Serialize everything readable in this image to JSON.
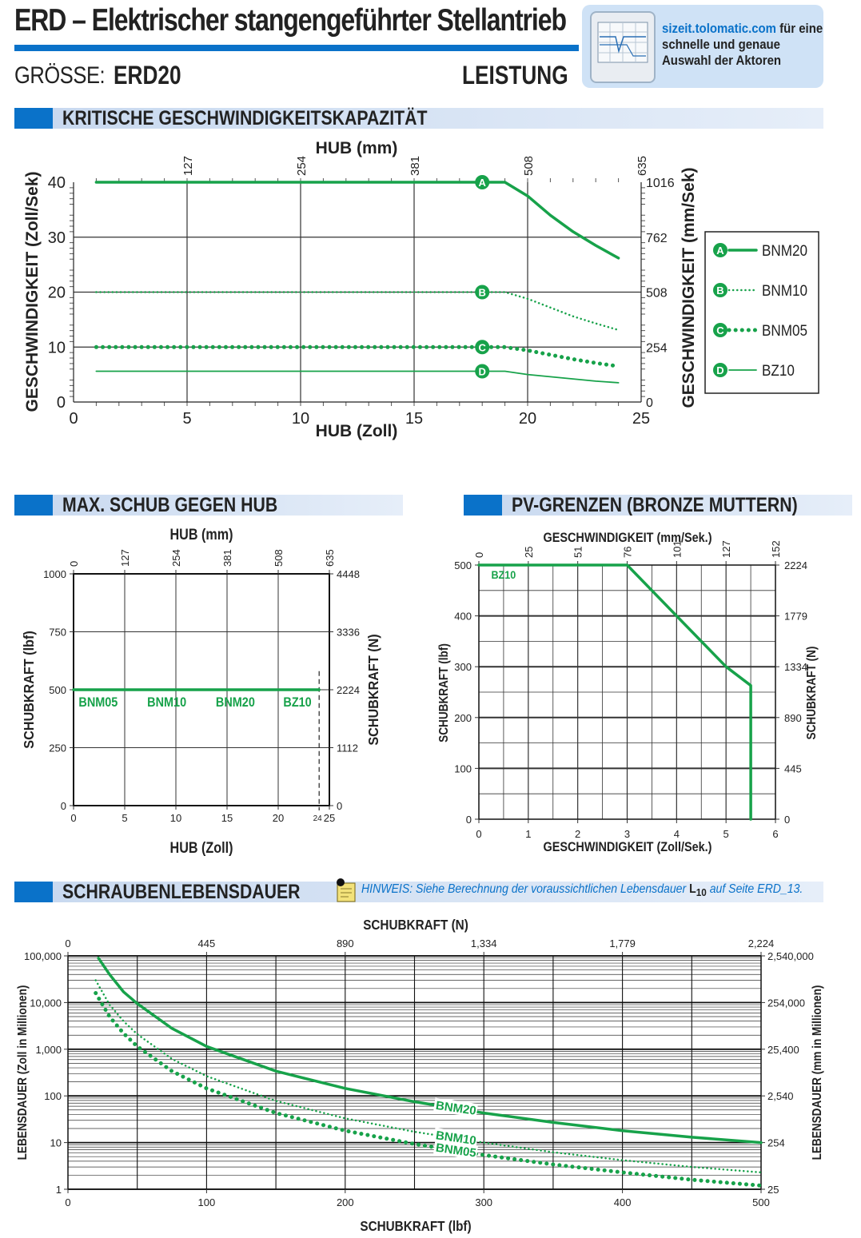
{
  "header": {
    "title": "ERD – Elektrischer stangengeführter Stellantrieb",
    "size_label": "GRÖSSE:",
    "size_value": "ERD20",
    "section": "LEISTUNG",
    "promo_url": "sizeit.tolomatic.com",
    "promo_rest": " für eine schnelle und genaue Auswahl der Aktoren"
  },
  "sections": {
    "critical": "KRITISCHE GESCHWINDIGKEITSKAPAZITÄT",
    "thrust": "MAX. SCHUB GEGEN HUB",
    "pv": "PV-GRENZEN (BRONZE MUTTERN)",
    "life": "SCHRAUBENLEBENSDAUER"
  },
  "note": {
    "text": "HINWEIS: Siehe Berechnung der voraussichtlichen Lebensdauer ",
    "bold": "L",
    "sub": "10",
    "tail": " auf Seite ERD_13."
  },
  "colors": {
    "accent": "#0a72c9",
    "series": "#17a24a"
  },
  "chart_data": [
    {
      "id": "critical_speed",
      "type": "line",
      "xlabel": "HUB (Zoll)",
      "x2label": "HUB (mm)",
      "ylabel": "GESCHWINDIGKEIT (Zoll/Sek)",
      "y2label": "GESCHWINDIGKEIT (mm/Sek)",
      "xlim": [
        0,
        25
      ],
      "ylim": [
        0,
        40
      ],
      "xticks": [
        0,
        5,
        10,
        15,
        20,
        25
      ],
      "yticks": [
        0,
        10,
        20,
        30,
        40
      ],
      "x2ticks": [
        {
          "v": 5,
          "l": "127"
        },
        {
          "v": 10,
          "l": "254"
        },
        {
          "v": 15,
          "l": "381"
        },
        {
          "v": 20,
          "l": "508"
        },
        {
          "v": 25,
          "l": "635"
        }
      ],
      "y2ticks": [
        {
          "v": 0,
          "l": "0"
        },
        {
          "v": 10,
          "l": "254"
        },
        {
          "v": 20,
          "l": "508"
        },
        {
          "v": 30,
          "l": "762"
        },
        {
          "v": 40,
          "l": "1016"
        }
      ],
      "series": [
        {
          "name": "BNM20",
          "marker": "A",
          "style": "solid",
          "x": [
            1,
            19,
            20,
            21,
            22,
            23,
            24
          ],
          "y": [
            40,
            40,
            37.5,
            34,
            31,
            28.5,
            26.2
          ],
          "label_at": [
            18,
            40
          ]
        },
        {
          "name": "BNM10",
          "marker": "B",
          "style": "dotted",
          "x": [
            1,
            19,
            20,
            21,
            22,
            23,
            24
          ],
          "y": [
            20,
            20,
            18.8,
            17.2,
            15.6,
            14.3,
            13.1
          ],
          "label_at": [
            18,
            20
          ]
        },
        {
          "name": "BNM05",
          "marker": "C",
          "style": "bigdot",
          "x": [
            1,
            19,
            20,
            21,
            22,
            23,
            24
          ],
          "y": [
            10,
            10,
            9.4,
            8.6,
            7.8,
            7.1,
            6.5
          ],
          "label_at": [
            18,
            10
          ]
        },
        {
          "name": "BZ10",
          "marker": "D",
          "style": "thin",
          "x": [
            1,
            19,
            20,
            21,
            22,
            23,
            24
          ],
          "y": [
            5.6,
            5.6,
            5,
            4.6,
            4.2,
            3.8,
            3.5
          ],
          "label_at": [
            18,
            5.6
          ]
        }
      ]
    },
    {
      "id": "thrust_vs_stroke",
      "type": "line",
      "xlabel": "HUB (Zoll)",
      "x2label": "HUB (mm)",
      "ylabel": "SCHUBKRAFT (lbf)",
      "y2label": "SCHUBKRAFT (N)",
      "xlim": [
        0,
        25
      ],
      "ylim": [
        0,
        1000
      ],
      "xticks": [
        0,
        5,
        10,
        15,
        20,
        25
      ],
      "yticks": [
        0,
        250,
        500,
        750,
        1000
      ],
      "x2ticks": [
        {
          "v": 0,
          "l": "0"
        },
        {
          "v": 5,
          "l": "127"
        },
        {
          "v": 10,
          "l": "254"
        },
        {
          "v": 15,
          "l": "381"
        },
        {
          "v": 20,
          "l": "508"
        },
        {
          "v": 25,
          "l": "635"
        }
      ],
      "y2ticks": [
        {
          "v": 0,
          "l": "0"
        },
        {
          "v": 250,
          "l": "1112"
        },
        {
          "v": 500,
          "l": "2224"
        },
        {
          "v": 750,
          "l": "3336"
        },
        {
          "v": 1000,
          "l": "4448"
        }
      ],
      "marker_24": "24",
      "series": [
        {
          "names": [
            "BNM05",
            "BNM10",
            "BNM20",
            "BZ10"
          ],
          "x": [
            0,
            24
          ],
          "y": [
            500,
            500
          ]
        }
      ],
      "label_x": [
        0.5,
        7.2,
        13.9,
        20.5
      ]
    },
    {
      "id": "pv_limits",
      "type": "line",
      "xlabel": "GESCHWINDIGKEIT (Zoll/Sek.)",
      "x2label": "GESCHWINDIGKEIT (mm/Sek.)",
      "ylabel": "SCHUBKRAFT (lbf)",
      "y2label": "SCHUBKRAFT (N)",
      "xlim": [
        0,
        6
      ],
      "ylim": [
        0,
        500
      ],
      "xticks": [
        0,
        1,
        2,
        3,
        4,
        5,
        6
      ],
      "yticks": [
        0,
        100,
        200,
        300,
        400,
        500
      ],
      "x2ticks": [
        {
          "v": 0,
          "l": "0"
        },
        {
          "v": 1,
          "l": "25"
        },
        {
          "v": 2,
          "l": "51"
        },
        {
          "v": 3,
          "l": "76"
        },
        {
          "v": 4,
          "l": "101"
        },
        {
          "v": 5,
          "l": "127"
        },
        {
          "v": 6,
          "l": "152"
        }
      ],
      "y2ticks": [
        {
          "v": 0,
          "l": "0"
        },
        {
          "v": 100,
          "l": "445"
        },
        {
          "v": 200,
          "l": "890"
        },
        {
          "v": 300,
          "l": "1334"
        },
        {
          "v": 400,
          "l": "1779"
        },
        {
          "v": 500,
          "l": "2224"
        }
      ],
      "series": [
        {
          "name": "BZ10",
          "x": [
            0,
            3,
            4,
            5,
            5.5,
            5.5
          ],
          "y": [
            500,
            500,
            400,
            300,
            263,
            0
          ]
        }
      ]
    },
    {
      "id": "screw_life",
      "type": "line",
      "yscale": "log",
      "xlabel": "SCHUBKRAFT (lbf)",
      "x2label": "SCHUBKRAFT (N)",
      "ylabel": "LEBENSDAUER (Zoll in Millionen)",
      "y2label": "LEBENSDAUER (mm in Millionen)",
      "xlim": [
        0,
        500
      ],
      "ylim": [
        1,
        100000
      ],
      "xticks": [
        0,
        100,
        200,
        300,
        400,
        500
      ],
      "yticks": [
        {
          "v": 1,
          "l": "1"
        },
        {
          "v": 10,
          "l": "10"
        },
        {
          "v": 100,
          "l": "100"
        },
        {
          "v": 1000,
          "l": "1,000"
        },
        {
          "v": 10000,
          "l": "10,000"
        },
        {
          "v": 100000,
          "l": "100,000"
        }
      ],
      "x2ticks": [
        {
          "v": 0,
          "l": "0"
        },
        {
          "v": 100,
          "l": "445"
        },
        {
          "v": 200,
          "l": "890"
        },
        {
          "v": 300,
          "l": "1,334"
        },
        {
          "v": 400,
          "l": "1,779"
        },
        {
          "v": 500,
          "l": "2,224"
        }
      ],
      "y2ticks": [
        {
          "v": 1,
          "l": "25"
        },
        {
          "v": 10,
          "l": "254"
        },
        {
          "v": 100,
          "l": "2,540"
        },
        {
          "v": 1000,
          "l": "25,400"
        },
        {
          "v": 10000,
          "l": "254,000"
        },
        {
          "v": 100000,
          "l": "2,540,000"
        }
      ],
      "series": [
        {
          "name": "BNM20",
          "style": "solid",
          "x": [
            22,
            30,
            40,
            50,
            75,
            100,
            150,
            200,
            250,
            300,
            350,
            400,
            450,
            500
          ],
          "y": [
            90000,
            40000,
            17000,
            9500,
            2800,
            1150,
            340,
            145,
            75,
            43,
            27,
            18,
            13,
            10
          ],
          "label_x": 265
        },
        {
          "name": "BNM10",
          "style": "dotted",
          "x": [
            20,
            30,
            40,
            50,
            75,
            100,
            150,
            200,
            250,
            300,
            350,
            400,
            450,
            500
          ],
          "y": [
            30000,
            9000,
            4000,
            2100,
            620,
            265,
            78,
            33,
            17,
            10,
            6.2,
            4.2,
            3,
            2.3
          ],
          "label_x": 265
        },
        {
          "name": "BNM05",
          "style": "bigdot",
          "x": [
            20,
            30,
            40,
            50,
            75,
            100,
            150,
            200,
            250,
            300,
            350,
            400,
            450,
            500
          ],
          "y": [
            16000,
            5000,
            2200,
            1150,
            340,
            145,
            43,
            18,
            9.3,
            5.4,
            3.4,
            2.3,
            1.6,
            1.2
          ],
          "label_x": 265
        }
      ]
    }
  ]
}
